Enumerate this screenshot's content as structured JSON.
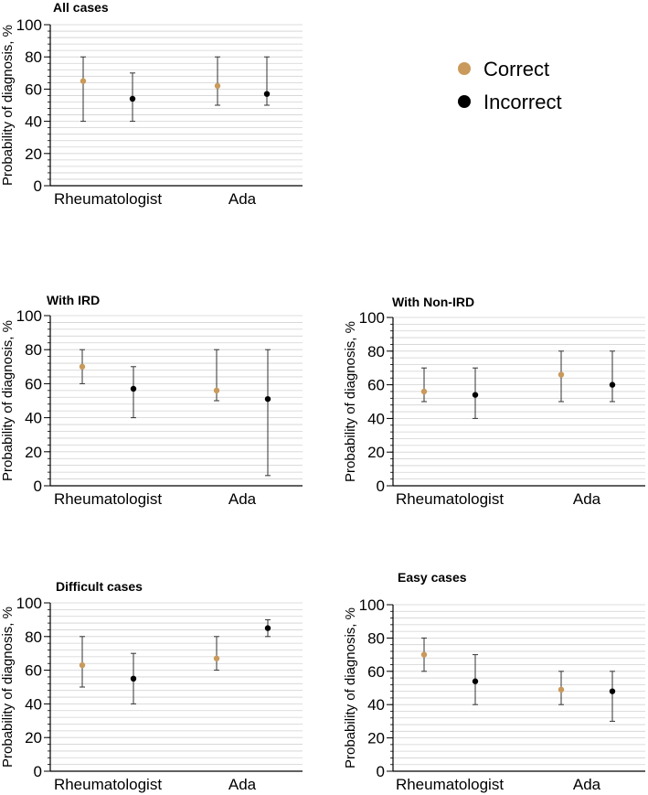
{
  "legend": {
    "entries": [
      {
        "name": "Correct",
        "color": "#c99a5b"
      },
      {
        "name": "Incorrect",
        "color": "#000000"
      }
    ]
  },
  "chart_data": [
    {
      "type": "scatter",
      "title": "All cases",
      "ylabel": "Probability of diagnosis, %",
      "xlabel": "",
      "categories": [
        "Rheumatologist",
        "Ada"
      ],
      "ylim": [
        0,
        100
      ],
      "yticks": [
        0,
        20,
        40,
        60,
        80,
        100
      ],
      "grid": true,
      "series": [
        {
          "name": "Correct",
          "color": "#c99a5b",
          "values": [
            65,
            62
          ],
          "lower": [
            40,
            50
          ],
          "upper": [
            80,
            80
          ]
        },
        {
          "name": "Incorrect",
          "color": "#000000",
          "values": [
            54,
            57
          ],
          "lower": [
            40,
            50
          ],
          "upper": [
            70,
            80
          ]
        }
      ]
    },
    {
      "type": "scatter",
      "title": "With IRD",
      "ylabel": "Probability of diagnosis, %",
      "xlabel": "",
      "categories": [
        "Rheumatologist",
        "Ada"
      ],
      "ylim": [
        0,
        100
      ],
      "yticks": [
        0,
        20,
        40,
        60,
        80,
        100
      ],
      "grid": true,
      "series": [
        {
          "name": "Correct",
          "color": "#c99a5b",
          "values": [
            70,
            56
          ],
          "lower": [
            60,
            50
          ],
          "upper": [
            80,
            80
          ]
        },
        {
          "name": "Incorrect",
          "color": "#000000",
          "values": [
            57,
            51
          ],
          "lower": [
            40,
            6
          ],
          "upper": [
            70,
            80
          ]
        }
      ]
    },
    {
      "type": "scatter",
      "title": "With Non-IRD",
      "ylabel": "Probability of diagnosis, %",
      "xlabel": "",
      "categories": [
        "Rheumatologist",
        "Ada"
      ],
      "ylim": [
        0,
        100
      ],
      "yticks": [
        0,
        20,
        40,
        60,
        80,
        100
      ],
      "grid": true,
      "series": [
        {
          "name": "Correct",
          "color": "#c99a5b",
          "values": [
            56,
            66
          ],
          "lower": [
            50,
            50
          ],
          "upper": [
            70,
            80
          ]
        },
        {
          "name": "Incorrect",
          "color": "#000000",
          "values": [
            54,
            60
          ],
          "lower": [
            40,
            50
          ],
          "upper": [
            70,
            80
          ]
        }
      ]
    },
    {
      "type": "scatter",
      "title": "Difficult cases",
      "ylabel": "Probability of diagnosis, %",
      "xlabel": "",
      "categories": [
        "Rheumatologist",
        "Ada"
      ],
      "ylim": [
        0,
        100
      ],
      "yticks": [
        0,
        20,
        40,
        60,
        80,
        100
      ],
      "grid": true,
      "series": [
        {
          "name": "Correct",
          "color": "#c99a5b",
          "values": [
            63,
            67
          ],
          "lower": [
            50,
            60
          ],
          "upper": [
            80,
            80
          ]
        },
        {
          "name": "Incorrect",
          "color": "#000000",
          "values": [
            55,
            85
          ],
          "lower": [
            40,
            80
          ],
          "upper": [
            70,
            90
          ]
        }
      ]
    },
    {
      "type": "scatter",
      "title": "Easy cases",
      "ylabel": "Probability of diagnosis, %",
      "xlabel": "",
      "categories": [
        "Rheumatologist",
        "Ada"
      ],
      "ylim": [
        0,
        100
      ],
      "yticks": [
        0,
        20,
        40,
        60,
        80,
        100
      ],
      "grid": true,
      "series": [
        {
          "name": "Correct",
          "color": "#c99a5b",
          "values": [
            70,
            49
          ],
          "lower": [
            60,
            40
          ],
          "upper": [
            80,
            60
          ]
        },
        {
          "name": "Incorrect",
          "color": "#000000",
          "values": [
            54,
            48
          ],
          "lower": [
            40,
            30
          ],
          "upper": [
            70,
            60
          ]
        }
      ]
    }
  ]
}
